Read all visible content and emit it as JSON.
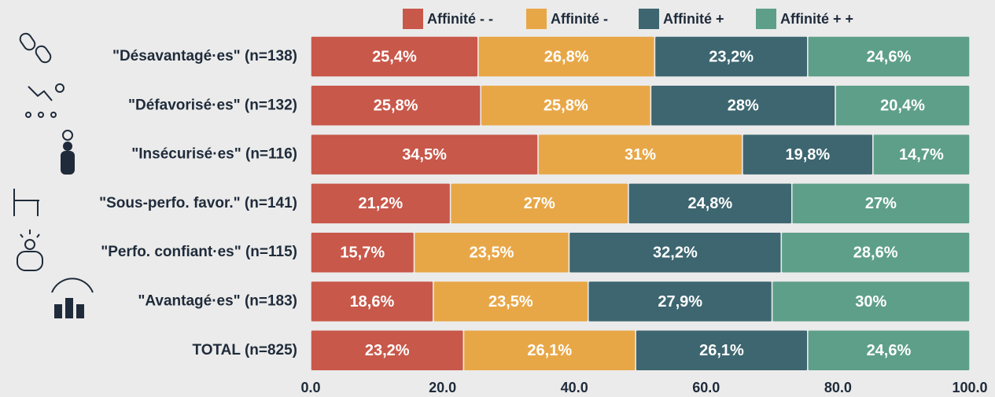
{
  "chart_data": {
    "type": "stacked-bar-horizontal",
    "categories": [
      "\"Désavantagé·es\" (n=138)",
      "\"Défavorisé·es\" (n=132)",
      "\"Insécurisé·es\" (n=116)",
      "\"Sous-perfo. favor.\" (n=141)",
      "\"Perfo. confiant·es\" (n=115)",
      "\"Avantagé·es\" (n=183)",
      "TOTAL (n=825)"
    ],
    "series": [
      {
        "name": "Affinité - -",
        "color": "#c8584a",
        "values": [
          25.4,
          25.8,
          34.5,
          21.2,
          15.7,
          18.6,
          23.2
        ],
        "value_labels": [
          "25,4%",
          "25,8%",
          "34,5%",
          "21,2%",
          "15,7%",
          "18,6%",
          "23,2%"
        ]
      },
      {
        "name": "Affinité -",
        "color": "#e8a747",
        "values": [
          26.8,
          25.8,
          31,
          27,
          23.5,
          23.5,
          26.1
        ],
        "value_labels": [
          "26,8%",
          "25,8%",
          "31%",
          "27%",
          "23,5%",
          "23,5%",
          "26,1%"
        ]
      },
      {
        "name": "Affinité +",
        "color": "#3d6670",
        "values": [
          23.2,
          28,
          19.8,
          24.8,
          32.2,
          27.9,
          26.1
        ],
        "value_labels": [
          "23,2%",
          "28%",
          "19,8%",
          "24,8%",
          "32,2%",
          "27,9%",
          "26,1%"
        ]
      },
      {
        "name": "Affinité + +",
        "color": "#5e9f89",
        "values": [
          24.6,
          20.4,
          14.7,
          27,
          28.6,
          30,
          24.6
        ],
        "value_labels": [
          "24,6%",
          "20,4%",
          "14,7%",
          "27%",
          "28,6%",
          "30%",
          "24,6%"
        ]
      }
    ],
    "xlim": [
      0,
      100
    ],
    "xticks": [
      {
        "value": 0,
        "label": "0.0"
      },
      {
        "value": 20,
        "label": "20.0"
      },
      {
        "value": 40,
        "label": "40.0"
      },
      {
        "value": 60,
        "label": "60.0"
      },
      {
        "value": 80,
        "label": "80.0"
      },
      {
        "value": 100,
        "label": "100.0"
      }
    ],
    "legend": "top"
  }
}
